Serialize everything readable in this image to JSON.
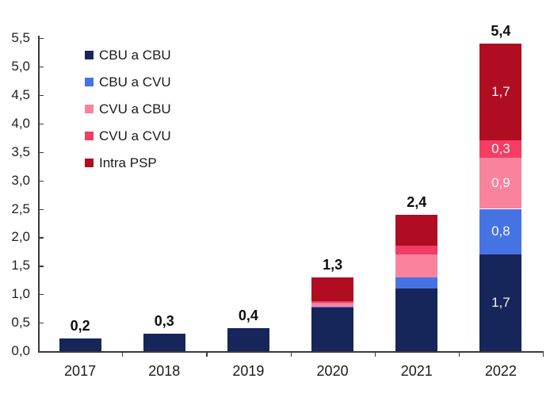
{
  "colors": {
    "background": "#ffffff",
    "axis": "#3a3a3a",
    "text": "#1b1b1b",
    "total_label": "#0d0d0d",
    "label_on_bar": "#ffffff"
  },
  "chart_data": {
    "type": "bar",
    "stacked": true,
    "title": "",
    "xlabel": "",
    "ylabel": "",
    "grid": false,
    "legend_position": "top-left-inside",
    "decimal_separator": ",",
    "ylim": [
      0,
      5.5
    ],
    "ytick_step": 0.5,
    "categories": [
      "2017",
      "2018",
      "2019",
      "2020",
      "2021",
      "2022"
    ],
    "series": [
      {
        "name": "CBU a CBU",
        "color": "#16265a",
        "values": [
          0.22,
          0.3,
          0.41,
          0.76,
          1.1,
          1.7
        ]
      },
      {
        "name": "CBU a CVU",
        "color": "#4673e4",
        "values": [
          0,
          0,
          0,
          0.02,
          0.2,
          0.8
        ]
      },
      {
        "name": "CVU a CBU",
        "color": "#f9839d",
        "values": [
          0,
          0,
          0,
          0.07,
          0.4,
          0.9
        ]
      },
      {
        "name": "CVU a CVU",
        "color": "#f43d63",
        "values": [
          0,
          0,
          0,
          0.03,
          0.15,
          0.3
        ]
      },
      {
        "name": "Intra PSP",
        "color": "#b00d22",
        "values": [
          0,
          0,
          0,
          0.42,
          0.55,
          1.7
        ]
      }
    ],
    "bar_total_labels": [
      "0,2",
      "0,3",
      "0,4",
      "1,3",
      "2,4",
      "5,4"
    ],
    "segment_labels": {
      "2022": [
        "1,7",
        "0,8",
        "0,9",
        "0,3",
        "1,7"
      ]
    }
  }
}
